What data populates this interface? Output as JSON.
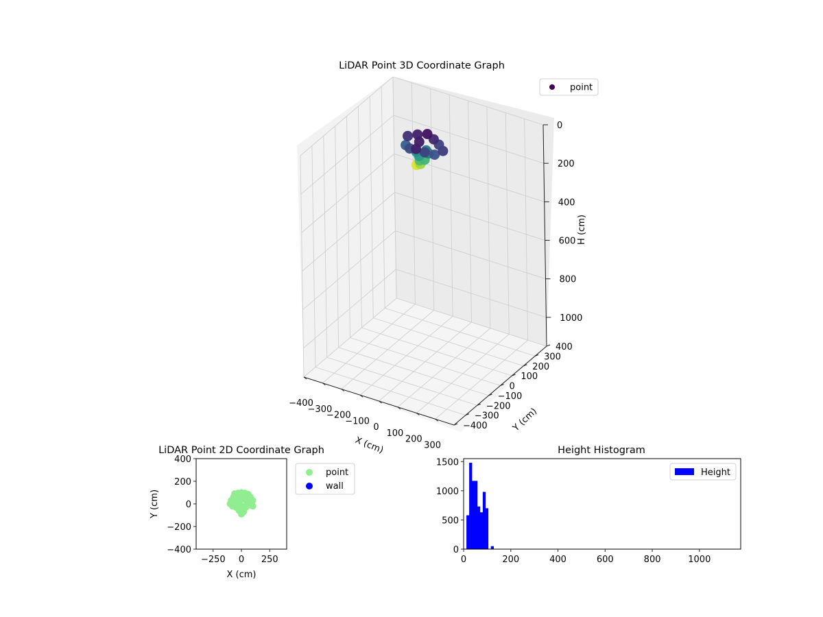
{
  "colors": {
    "accent_3d": "#440154",
    "point_2d": "#90ee90",
    "wall_2d": "#0000ff",
    "hist": "#0000ff"
  },
  "chart_data": [
    {
      "type": "scatter",
      "title": "LiDAR Point 3D Coordinate Graph",
      "xlabel": "X (cm)",
      "ylabel": "Y (cm)",
      "zlabel": "H (cm)",
      "xlim": [
        -400,
        400
      ],
      "ylim": [
        -400,
        400
      ],
      "zlim": [
        1150,
        0
      ],
      "xticks": [
        -400,
        -300,
        -200,
        -100,
        0,
        100,
        200,
        300
      ],
      "yticks": [
        -400,
        -300,
        -200,
        -100,
        0,
        100,
        200,
        300,
        400
      ],
      "zticks": [
        0,
        200,
        400,
        600,
        800,
        1000
      ],
      "xtick_labels": [
        "−400",
        "−300",
        "−200",
        "−100",
        "0",
        "100",
        "200",
        "300"
      ],
      "ytick_labels": [
        "−400",
        "−300",
        "−200",
        "−100",
        "0",
        "100",
        "200",
        "300",
        "400"
      ],
      "ztick_labels": [
        "0",
        "200",
        "400",
        "600",
        "800",
        "1000"
      ],
      "colormap": "viridis",
      "legend": [
        {
          "label": "point",
          "color": "#440154"
        }
      ],
      "legend_position": "top-right",
      "series": [
        {
          "name": "point",
          "points": [
            [
              -100,
              40,
              30,
              0.15
            ],
            [
              -60,
              60,
              20,
              0.1
            ],
            [
              -20,
              80,
              15,
              0.05
            ],
            [
              20,
              70,
              25,
              0.12
            ],
            [
              60,
              50,
              30,
              0.2
            ],
            [
              100,
              20,
              35,
              0.18
            ],
            [
              80,
              -20,
              40,
              0.25
            ],
            [
              40,
              -40,
              30,
              0.2
            ],
            [
              0,
              -50,
              20,
              0.1
            ],
            [
              -40,
              -40,
              35,
              0.22
            ],
            [
              -80,
              -10,
              45,
              0.3
            ],
            [
              -20,
              10,
              20,
              0.08
            ],
            [
              10,
              20,
              60,
              0.4
            ],
            [
              -10,
              -10,
              80,
              0.55
            ],
            [
              0,
              -20,
              95,
              0.7
            ],
            [
              10,
              -30,
              105,
              0.85
            ],
            [
              -5,
              -40,
              110,
              0.95
            ],
            [
              -30,
              0,
              70,
              0.5
            ],
            [
              30,
              10,
              65,
              0.45
            ],
            [
              20,
              -10,
              90,
              0.65
            ]
          ]
        }
      ]
    },
    {
      "type": "scatter",
      "title": "LiDAR Point 2D Coordinate Graph",
      "xlabel": "X (cm)",
      "ylabel": "Y (cm)",
      "xlim": [
        -400,
        400
      ],
      "ylim": [
        -400,
        400
      ],
      "xticks": [
        -250,
        0,
        250
      ],
      "yticks": [
        -400,
        -200,
        0,
        200,
        400
      ],
      "xtick_labels": [
        "−250",
        "0",
        "250"
      ],
      "ytick_labels": [
        "−400",
        "−200",
        "0",
        "200",
        "400"
      ],
      "legend_position": "outside-right",
      "series": [
        {
          "name": "point",
          "color": "#90ee90",
          "points": [
            [
              -60,
              90
            ],
            [
              -30,
              95
            ],
            [
              0,
              100
            ],
            [
              30,
              95
            ],
            [
              60,
              85
            ],
            [
              80,
              60
            ],
            [
              100,
              30
            ],
            [
              90,
              0
            ],
            [
              100,
              -20
            ],
            [
              70,
              -10
            ],
            [
              40,
              -30
            ],
            [
              20,
              -70
            ],
            [
              0,
              -90
            ],
            [
              -20,
              -60
            ],
            [
              -50,
              -30
            ],
            [
              -80,
              -20
            ],
            [
              -100,
              0
            ],
            [
              -90,
              30
            ],
            [
              -70,
              60
            ],
            [
              -40,
              50
            ],
            [
              0,
              40
            ],
            [
              30,
              40
            ],
            [
              50,
              20
            ],
            [
              -20,
              0
            ],
            [
              10,
              -20
            ],
            [
              -60,
              0
            ],
            [
              60,
              60
            ],
            [
              -10,
              70
            ]
          ]
        },
        {
          "name": "wall",
          "color": "#0000ff",
          "points": []
        }
      ]
    },
    {
      "type": "bar",
      "title": "Height Histogram",
      "xlabel": "",
      "ylabel": "",
      "xlim": [
        0,
        1175
      ],
      "ylim": [
        0,
        1550
      ],
      "xticks": [
        0,
        200,
        400,
        600,
        800,
        1000
      ],
      "yticks": [
        0,
        500,
        1000,
        1500
      ],
      "xtick_labels": [
        "0",
        "200",
        "400",
        "600",
        "800",
        "1000"
      ],
      "ytick_labels": [
        "0",
        "500",
        "1000",
        "1500"
      ],
      "legend": [
        {
          "label": "Height",
          "color": "#0000ff"
        }
      ],
      "legend_position": "top-right",
      "bin_width": 11.5,
      "bin_starts": [
        12,
        23.5,
        35,
        46.5,
        58,
        69.5,
        81,
        92.5,
        104,
        115.5
      ],
      "values": [
        580,
        1480,
        1170,
        1170,
        730,
        630,
        980,
        700,
        0,
        50
      ]
    }
  ]
}
